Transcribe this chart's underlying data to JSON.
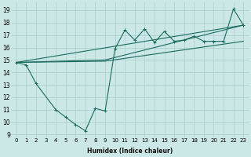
{
  "xlabel": "Humidex (Indice chaleur)",
  "bg_color": "#cce8e6",
  "line_color": "#1a6b5e",
  "grid_color": "#aacfcc",
  "x_ticks": [
    0,
    1,
    2,
    3,
    4,
    5,
    6,
    7,
    8,
    9,
    10,
    11,
    12,
    13,
    14,
    15,
    16,
    17,
    18,
    19,
    20,
    21,
    22,
    23
  ],
  "y_ticks": [
    9,
    10,
    11,
    12,
    13,
    14,
    15,
    16,
    17,
    18,
    19
  ],
  "xlim": [
    -0.5,
    23.5
  ],
  "ylim": [
    8.8,
    19.6
  ],
  "series_zigzag": {
    "x": [
      0,
      1,
      2,
      4,
      5,
      6,
      7,
      8,
      9,
      10,
      11,
      12,
      13,
      14,
      15,
      16,
      17,
      18,
      19,
      20,
      21,
      22,
      23
    ],
    "y": [
      14.8,
      14.6,
      13.1,
      11.0,
      10.4,
      9.8,
      9.3,
      11.1,
      10.9,
      15.9,
      17.4,
      16.6,
      17.5,
      16.4,
      17.3,
      16.5,
      16.6,
      16.9,
      16.5,
      16.5,
      16.5,
      19.1,
      17.8
    ]
  },
  "series_trend1": {
    "x": [
      0,
      23
    ],
    "y": [
      14.8,
      17.8
    ]
  },
  "series_trend2": {
    "x": [
      0,
      9,
      23
    ],
    "y": [
      14.8,
      15.0,
      17.8
    ]
  },
  "series_trend3": {
    "x": [
      0,
      9,
      23
    ],
    "y": [
      14.8,
      14.9,
      16.5
    ]
  },
  "marker_size": 2.5,
  "line_width": 0.8,
  "xlabel_fontsize": 5.5,
  "tick_fontsize": 5.0
}
